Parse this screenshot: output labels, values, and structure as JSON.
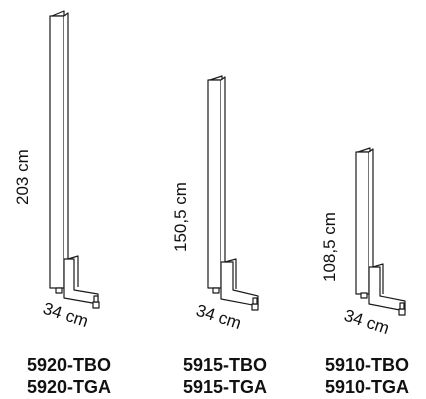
{
  "products": [
    {
      "height_label": "203 cm",
      "depth_label": "34 cm",
      "code_1": "5920-TBO",
      "code_2": "5920-TGA"
    },
    {
      "height_label": "150,5 cm",
      "depth_label": "34 cm",
      "code_1": "5915-TBO",
      "code_2": "5915-TGA"
    },
    {
      "height_label": "108,5 cm",
      "depth_label": "34 cm",
      "code_1": "5910-TBO",
      "code_2": "5910-TGA"
    }
  ]
}
